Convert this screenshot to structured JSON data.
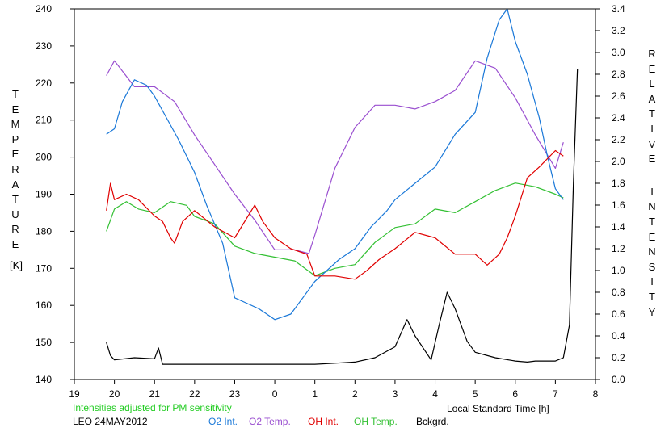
{
  "colors": {
    "o2_int": "#1a78d8",
    "o2_temp": "#9a4fd0",
    "oh_int": "#e00000",
    "oh_temp": "#33c033",
    "background": "#000000",
    "note": "#22cc22"
  },
  "labels": {
    "y_left_letters": [
      "T",
      "E",
      "M",
      "P",
      "E",
      "R",
      "A",
      "T",
      "U",
      "R",
      "E"
    ],
    "y_left_unit": "[K]",
    "y_right_letters_1": [
      "R",
      "E",
      "L",
      "A",
      "T",
      "I",
      "V",
      "E"
    ],
    "y_right_letters_2": [
      "I",
      "N",
      "T",
      "E",
      "N",
      "S",
      "I",
      "T",
      "Y"
    ],
    "x_axis": "Local Standard Time [h]",
    "note": "Intensities adjusted for PM sensitivity",
    "station": "LEO 24MAY2012",
    "legend": [
      "O2 Int.",
      "O2 Temp.",
      "OH Int.",
      "OH Temp.",
      "Bckgrd."
    ]
  },
  "chart_data": {
    "type": "line",
    "xlabel": "Local Standard Time [h]",
    "ylabel_left": "TEMPERATURE [K]",
    "ylabel_right": "RELATIVE INTENSITY",
    "x_ticks": [
      "19",
      "20",
      "21",
      "22",
      "23",
      "0",
      "1",
      "2",
      "3",
      "4",
      "5",
      "6",
      "7",
      "8"
    ],
    "x_range": [
      19,
      32
    ],
    "y_left_range": [
      140,
      240
    ],
    "y_left_ticks": [
      140,
      150,
      160,
      170,
      180,
      190,
      200,
      210,
      220,
      230,
      240
    ],
    "y_right_range": [
      0.0,
      3.4
    ],
    "y_right_ticks": [
      "0.0",
      "0.2",
      "0.4",
      "0.6",
      "0.8",
      "1.0",
      "1.2",
      "1.4",
      "1.6",
      "1.8",
      "2.0",
      "2.2",
      "2.4",
      "2.6",
      "2.8",
      "3.0",
      "3.2",
      "3.4"
    ],
    "grid": false,
    "series": [
      {
        "name": "O2 Temp.",
        "axis": "left",
        "x": [
          19.8,
          20.0,
          20.5,
          21.0,
          21.5,
          22.0,
          22.5,
          23.0,
          23.5,
          24.0,
          24.5,
          24.85,
          25.0,
          25.5,
          26.0,
          26.5,
          27.0,
          27.5,
          28.0,
          28.5,
          29.0,
          29.5,
          30.0,
          30.5,
          31.0,
          31.2
        ],
        "y": [
          222,
          226,
          219,
          219,
          215,
          206,
          198,
          190,
          183,
          175,
          175,
          174,
          179,
          197,
          208,
          214,
          214,
          213,
          215,
          218,
          226,
          224,
          216,
          206,
          197,
          204
        ]
      },
      {
        "name": "O2 Int.",
        "axis": "right",
        "x": [
          19.8,
          20.0,
          20.2,
          20.5,
          20.8,
          21.0,
          21.3,
          21.6,
          22.0,
          22.3,
          22.7,
          23.0,
          23.3,
          23.6,
          24.0,
          24.4,
          24.7,
          25.0,
          25.3,
          25.6,
          26.0,
          26.4,
          26.8,
          27.0,
          27.5,
          28.0,
          28.5,
          29.0,
          29.3,
          29.6,
          29.8,
          30.0,
          30.3,
          30.6,
          30.8,
          31.0,
          31.2
        ],
        "y": [
          2.25,
          2.3,
          2.55,
          2.75,
          2.7,
          2.6,
          2.4,
          2.2,
          1.9,
          1.6,
          1.25,
          0.75,
          0.7,
          0.65,
          0.55,
          0.6,
          0.75,
          0.9,
          1.0,
          1.1,
          1.2,
          1.4,
          1.55,
          1.65,
          1.8,
          1.95,
          2.25,
          2.45,
          2.95,
          3.3,
          3.4,
          3.1,
          2.8,
          2.4,
          2.05,
          1.75,
          1.65
        ]
      },
      {
        "name": "OH Temp.",
        "axis": "left",
        "x": [
          19.8,
          20.0,
          20.3,
          20.6,
          21.0,
          21.4,
          21.8,
          22.0,
          22.5,
          23.0,
          23.5,
          24.0,
          24.5,
          25.0,
          25.5,
          26.0,
          26.5,
          27.0,
          27.5,
          28.0,
          28.5,
          29.0,
          29.5,
          30.0,
          30.5,
          31.0,
          31.2
        ],
        "y": [
          180,
          186,
          188,
          186,
          185,
          188,
          187,
          184,
          182,
          176,
          174,
          173,
          172,
          168,
          170,
          171,
          177,
          181,
          182,
          186,
          185,
          188,
          191,
          193,
          192,
          190,
          189
        ]
      },
      {
        "name": "OH Int.",
        "axis": "right",
        "x": [
          19.8,
          19.9,
          20.0,
          20.3,
          20.6,
          21.0,
          21.2,
          21.4,
          21.5,
          21.7,
          22.0,
          22.5,
          23.0,
          23.5,
          23.7,
          24.0,
          24.4,
          24.8,
          25.0,
          25.5,
          26.0,
          26.3,
          26.6,
          27.0,
          27.5,
          28.0,
          28.5,
          29.0,
          29.3,
          29.6,
          29.8,
          30.0,
          30.3,
          30.6,
          31.0,
          31.2
        ],
        "y": [
          1.55,
          1.8,
          1.65,
          1.7,
          1.65,
          1.5,
          1.45,
          1.3,
          1.25,
          1.45,
          1.55,
          1.4,
          1.3,
          1.6,
          1.45,
          1.3,
          1.2,
          1.15,
          0.95,
          0.95,
          0.92,
          1.0,
          1.1,
          1.2,
          1.35,
          1.3,
          1.15,
          1.15,
          1.05,
          1.15,
          1.3,
          1.5,
          1.85,
          1.95,
          2.1,
          2.05
        ]
      },
      {
        "name": "Bckgrd.",
        "axis": "right",
        "x": [
          19.8,
          19.9,
          20.0,
          20.5,
          21.0,
          21.1,
          21.2,
          22.0,
          23.0,
          24.0,
          25.0,
          25.5,
          26.0,
          26.5,
          27.0,
          27.3,
          27.5,
          27.9,
          28.1,
          28.3,
          28.5,
          28.8,
          29.0,
          29.5,
          30.0,
          30.3,
          30.5,
          31.0,
          31.2,
          31.35,
          31.45,
          31.55
        ],
        "y": [
          0.34,
          0.22,
          0.18,
          0.2,
          0.19,
          0.29,
          0.14,
          0.14,
          0.14,
          0.14,
          0.14,
          0.15,
          0.16,
          0.2,
          0.3,
          0.55,
          0.4,
          0.18,
          0.5,
          0.8,
          0.65,
          0.35,
          0.25,
          0.2,
          0.17,
          0.16,
          0.17,
          0.17,
          0.2,
          0.5,
          1.8,
          2.85
        ]
      }
    ]
  }
}
